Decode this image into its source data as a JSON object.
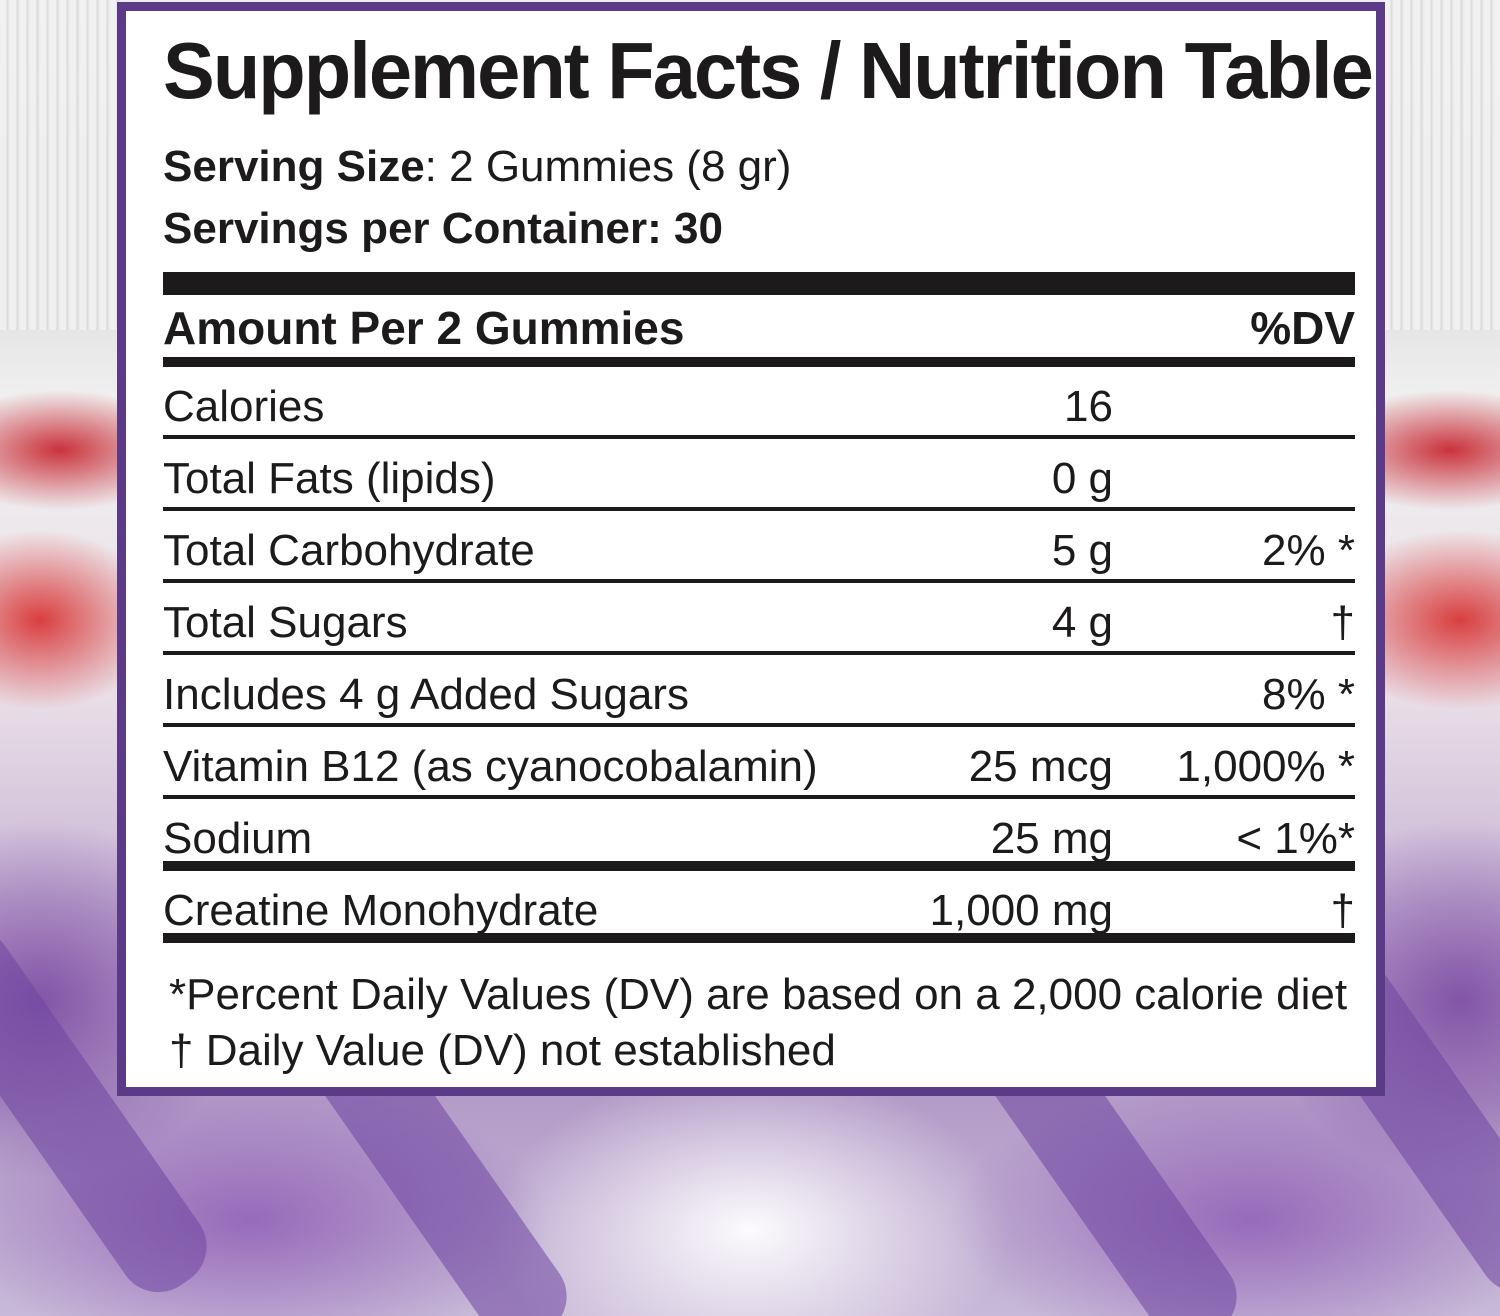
{
  "label": {
    "title": "Supplement Facts / Nutrition Table",
    "serving_size_label": "Serving Size",
    "serving_size_value": ": 2 Gummies (8 gr)",
    "servings_per_container": "Servings per Container: 30",
    "header_amount": "Amount Per 2 Gummies",
    "header_dv": "%DV",
    "rows": [
      {
        "name": "Calories",
        "amount": "16",
        "pct": ""
      },
      {
        "name": "Total Fats (lipids)",
        "amount": "0 g",
        "pct": ""
      },
      {
        "name": "Total Carbohydrate",
        "amount": "5 g",
        "pct": "2% *"
      },
      {
        "name": "Total Sugars",
        "amount": "4 g",
        "pct": "†"
      },
      {
        "name": "Includes 4 g Added Sugars",
        "amount": "",
        "pct": "8% *"
      },
      {
        "name": "Vitamin B12 (as cyanocobalamin)",
        "amount": "25 mcg",
        "pct": "1,000% *"
      },
      {
        "name": "Sodium",
        "amount": "25 mg",
        "pct": "< 1%*"
      },
      {
        "name": "Creatine Monohydrate",
        "amount": "1,000 mg",
        "pct": "†"
      }
    ],
    "footnote_1": "*Percent Daily Values (DV) are based on a 2,000 calorie diet",
    "footnote_2": "† Daily Value (DV) not established"
  },
  "colors": {
    "border": "#5b3a87",
    "text": "#1c1a1a"
  }
}
